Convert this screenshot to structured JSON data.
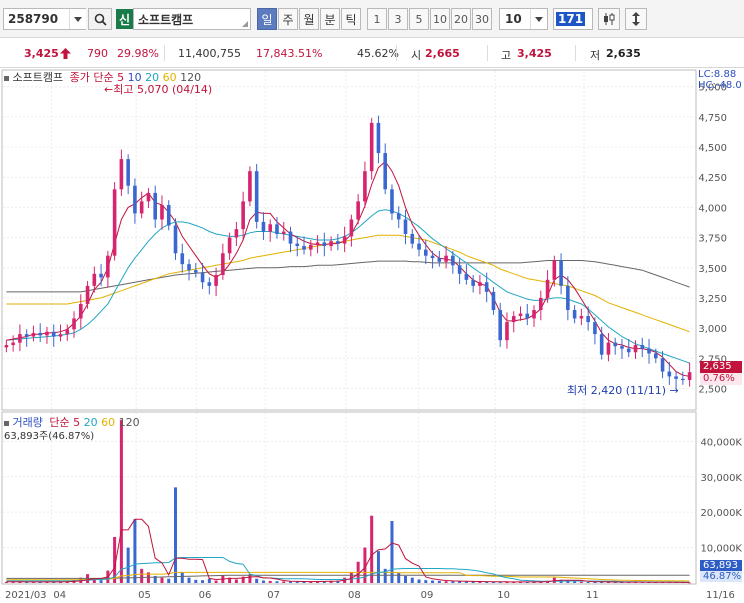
{
  "toolbar": {
    "code": "258790",
    "credit_badge": "신",
    "stock_name": "소프트캠프",
    "periods": [
      "일",
      "주",
      "월",
      "분",
      "틱"
    ],
    "active_period": 0,
    "minute_units": [
      "1",
      "3",
      "5",
      "10",
      "20",
      "30"
    ],
    "count_select": "10",
    "count_input": "171",
    "colors": {
      "active": "#5c7cbf",
      "badge": "#197b4a"
    }
  },
  "quote": {
    "price": "3,425",
    "change_icon": "up-arrow-icon",
    "change": "790",
    "change_pct": "29.98%",
    "volume": "11,400,755",
    "volume_pct": "17,843.51%",
    "ratio": "45.62%",
    "open_label": "시",
    "open": "2,665",
    "high_label": "고",
    "high": "3,425",
    "low_label": "저",
    "low": "2,635"
  },
  "legend_top": {
    "name": "소프트캠프",
    "price_label": "종가 단순",
    "ma": [
      "5",
      "10",
      "20",
      "60",
      "120"
    ]
  },
  "right_labels": {
    "lc": "LC:8.88",
    "hc": "HC:-48.0"
  },
  "annotations": {
    "high": "최고 5,070 (04/14)",
    "low": "최저 2,420 (11/11)"
  },
  "price_tags": {
    "price": "2,635",
    "pct": "0.76%"
  },
  "legend_bottom": {
    "name": "거래량",
    "label": "단순",
    "ma": [
      "5",
      "20",
      "60",
      "120"
    ],
    "current": "63,893주(46.87%)"
  },
  "volume_tags": {
    "vol": "63,893",
    "pct": "46.87%"
  },
  "chart_data": [
    {
      "type": "candlestick",
      "title": "소프트캠프",
      "y_ticks": [
        2500,
        2750,
        3000,
        3250,
        3500,
        3750,
        4000,
        4250,
        4500,
        4750,
        5000
      ],
      "ylim": [
        2330,
        5130
      ],
      "x_ticks": [
        "2021/03",
        "04",
        "05",
        "06",
        "07",
        "08",
        "09",
        "10",
        "11",
        "11/16"
      ],
      "close_series": [
        2860,
        2880,
        2950,
        2930,
        2960,
        2940,
        2970,
        2930,
        2950,
        2990,
        3080,
        3200,
        3350,
        3450,
        3420,
        3600,
        4150,
        4400,
        4180,
        3950,
        4050,
        4120,
        3900,
        4020,
        3850,
        3620,
        3530,
        3480,
        3460,
        3380,
        3350,
        3440,
        3620,
        3750,
        3820,
        4050,
        4300,
        3880,
        3800,
        3860,
        3780,
        3800,
        3700,
        3680,
        3650,
        3690,
        3710,
        3680,
        3720,
        3700,
        3760,
        3900,
        4050,
        4300,
        4700,
        4450,
        4150,
        3950,
        3900,
        3780,
        3700,
        3650,
        3600,
        3580,
        3550,
        3600,
        3520,
        3450,
        3400,
        3350,
        3380,
        3300,
        3150,
        2900,
        3050,
        3100,
        3120,
        3080,
        3150,
        3250,
        3400,
        3560,
        3350,
        3150,
        3080,
        3100,
        3050,
        2950,
        2780,
        2880,
        2850,
        2830,
        2800,
        2860,
        2830,
        2790,
        2750,
        2640,
        2600,
        2580,
        2570,
        2635
      ],
      "ma5": [
        2900,
        2910,
        2920,
        2930,
        2950,
        2950,
        2960,
        2960,
        2970,
        2990,
        3040,
        3100,
        3200,
        3320,
        3380,
        3500,
        3700,
        3900,
        4000,
        4030,
        4080,
        4120,
        4040,
        4020,
        3960,
        3880,
        3760,
        3680,
        3600,
        3520,
        3450,
        3420,
        3460,
        3530,
        3620,
        3730,
        3900,
        3960,
        3950,
        3950,
        3880,
        3830,
        3780,
        3750,
        3720,
        3700,
        3690,
        3690,
        3700,
        3700,
        3720,
        3780,
        3880,
        4010,
        4190,
        4330,
        4380,
        4300,
        4180,
        4000,
        3860,
        3770,
        3690,
        3620,
        3580,
        3570,
        3560,
        3510,
        3450,
        3400,
        3370,
        3350,
        3250,
        3130,
        3060,
        3060,
        3070,
        3080,
        3110,
        3160,
        3270,
        3400,
        3440,
        3400,
        3330,
        3240,
        3150,
        3060,
        2960,
        2900,
        2870,
        2860,
        2840,
        2830,
        2830,
        2820,
        2800,
        2760,
        2700,
        2640,
        2610,
        2600
      ],
      "ma20": [
        2900,
        2905,
        2910,
        2915,
        2920,
        2925,
        2930,
        2935,
        2940,
        2950,
        2960,
        2990,
        3030,
        3080,
        3140,
        3200,
        3300,
        3400,
        3500,
        3580,
        3650,
        3720,
        3780,
        3830,
        3860,
        3880,
        3880,
        3870,
        3850,
        3830,
        3800,
        3780,
        3770,
        3760,
        3760,
        3770,
        3790,
        3800,
        3800,
        3800,
        3790,
        3780,
        3770,
        3760,
        3750,
        3740,
        3730,
        3730,
        3730,
        3740,
        3760,
        3790,
        3830,
        3880,
        3930,
        3970,
        3980,
        3970,
        3950,
        3920,
        3880,
        3840,
        3790,
        3740,
        3700,
        3660,
        3620,
        3580,
        3540,
        3500,
        3460,
        3420,
        3380,
        3340,
        3300,
        3280,
        3260,
        3240,
        3230,
        3230,
        3240,
        3250,
        3250,
        3240,
        3220,
        3200,
        3160,
        3110,
        3060,
        3010,
        2970,
        2930,
        2900,
        2870,
        2850,
        2830,
        2810,
        2790,
        2770,
        2750,
        2730,
        2710
      ],
      "ma60": [
        3200,
        3200,
        3200,
        3200,
        3200,
        3200,
        3200,
        3200,
        3200,
        3200,
        3210,
        3220,
        3230,
        3240,
        3250,
        3270,
        3290,
        3310,
        3330,
        3350,
        3370,
        3390,
        3410,
        3430,
        3450,
        3460,
        3470,
        3480,
        3490,
        3500,
        3510,
        3520,
        3530,
        3540,
        3550,
        3560,
        3580,
        3590,
        3600,
        3610,
        3620,
        3630,
        3640,
        3650,
        3660,
        3670,
        3680,
        3690,
        3700,
        3710,
        3720,
        3730,
        3740,
        3750,
        3760,
        3770,
        3770,
        3770,
        3770,
        3760,
        3750,
        3740,
        3730,
        3710,
        3690,
        3670,
        3650,
        3630,
        3600,
        3580,
        3560,
        3540,
        3520,
        3490,
        3470,
        3450,
        3430,
        3410,
        3400,
        3390,
        3380,
        3370,
        3360,
        3350,
        3330,
        3310,
        3290,
        3270,
        3240,
        3210,
        3190,
        3170,
        3150,
        3130,
        3110,
        3090,
        3070,
        3050,
        3030,
        3010,
        2990,
        2970
      ],
      "ma120": [
        3300,
        3300,
        3300,
        3300,
        3300,
        3300,
        3300,
        3300,
        3300,
        3300,
        3300,
        3300,
        3310,
        3320,
        3330,
        3340,
        3350,
        3360,
        3370,
        3380,
        3390,
        3400,
        3410,
        3420,
        3430,
        3440,
        3445,
        3450,
        3455,
        3460,
        3465,
        3470,
        3475,
        3480,
        3485,
        3490,
        3495,
        3500,
        3500,
        3500,
        3500,
        3505,
        3510,
        3510,
        3510,
        3515,
        3520,
        3520,
        3520,
        3525,
        3530,
        3535,
        3540,
        3545,
        3550,
        3555,
        3555,
        3555,
        3555,
        3555,
        3550,
        3550,
        3545,
        3540,
        3540,
        3540,
        3540,
        3540,
        3540,
        3540,
        3540,
        3540,
        3540,
        3540,
        3540,
        3540,
        3540,
        3545,
        3550,
        3555,
        3560,
        3560,
        3560,
        3560,
        3560,
        3560,
        3555,
        3550,
        3540,
        3530,
        3520,
        3510,
        3500,
        3490,
        3480,
        3460,
        3440,
        3420,
        3400,
        3380,
        3360,
        3340
      ]
    },
    {
      "type": "bar",
      "title": "거래량",
      "y_ticks": [
        10000000,
        20000000,
        30000000,
        40000000
      ],
      "y_tick_labels": [
        "10,000K",
        "20,000K",
        "30,000K",
        "40,000K"
      ],
      "ylim": [
        0,
        48000000
      ],
      "values": [
        300000,
        250000,
        400000,
        300000,
        200000,
        350000,
        250000,
        300000,
        400000,
        500000,
        900000,
        1500000,
        2500000,
        1200000,
        800000,
        3500000,
        13000000,
        46000000,
        10000000,
        18000000,
        4000000,
        3000000,
        2000000,
        1500000,
        1200000,
        27000000,
        3000000,
        1500000,
        900000,
        800000,
        1200000,
        700000,
        2200000,
        1500000,
        1000000,
        1800000,
        2500000,
        1200000,
        700000,
        600000,
        500000,
        450000,
        400000,
        350000,
        400000,
        500000,
        450000,
        400000,
        600000,
        700000,
        1500000,
        3000000,
        6000000,
        10000000,
        19000000,
        9000000,
        4000000,
        17500000,
        3000000,
        2000000,
        1500000,
        1000000,
        800000,
        700000,
        600000,
        500000,
        500000,
        450000,
        400000,
        400000,
        450000,
        350000,
        300000,
        350000,
        300000,
        250000,
        300000,
        280000,
        350000,
        400000,
        600000,
        1500000,
        900000,
        500000,
        400000,
        350000,
        300000,
        300000,
        280000,
        260000,
        250000,
        240000,
        230000,
        260000,
        240000,
        220000,
        210000,
        200000,
        190000,
        180000,
        170000,
        63893
      ],
      "ma5": [
        350000,
        330000,
        330000,
        310000,
        300000,
        300000,
        300000,
        310000,
        320000,
        350000,
        450000,
        600000,
        900000,
        1200000,
        1300000,
        1700000,
        4300000,
        15000000,
        15000000,
        18000000,
        18000000,
        16000000,
        7000000,
        5700000,
        2300000,
        7000000,
        7000000,
        6700000,
        6700000,
        6600000,
        1300000,
        1000000,
        1100000,
        1300000,
        1300000,
        1400000,
        1700000,
        1800000,
        1500000,
        1400000,
        1100000,
        700000,
        500000,
        450000,
        420000,
        400000,
        430000,
        450000,
        500000,
        550000,
        800000,
        1300000,
        2500000,
        4300000,
        7900000,
        9400000,
        9600000,
        11300000,
        10700000,
        6900000,
        5600000,
        4800000,
        1700000,
        1200000,
        900000,
        700000,
        600000,
        550000,
        500000,
        450000,
        430000,
        400000,
        380000,
        360000,
        330000,
        310000,
        300000,
        300000,
        300000,
        320000,
        390000,
        650000,
        750000,
        800000,
        800000,
        730000,
        500000,
        370000,
        330000,
        300000,
        280000,
        260000,
        250000,
        250000,
        240000,
        230000,
        220000,
        210000,
        200000,
        190000,
        180000,
        150000
      ],
      "ma20": [
        600000,
        600000,
        600000,
        600000,
        600000,
        600000,
        600000,
        600000,
        600000,
        600000,
        600000,
        700000,
        800000,
        900000,
        1000000,
        1100000,
        1700000,
        3900000,
        4400000,
        5300000,
        5500000,
        5600000,
        5700000,
        5700000,
        5800000,
        7100000,
        7200000,
        7200000,
        7200000,
        7200000,
        7200000,
        7200000,
        7200000,
        6100000,
        5500000,
        5300000,
        2500000,
        2100000,
        1400000,
        1400000,
        1300000,
        1200000,
        1200000,
        1200000,
        1200000,
        1100000,
        1000000,
        1000000,
        1000000,
        1000000,
        1000000,
        1100000,
        1300000,
        1700000,
        2600000,
        3000000,
        3100000,
        3900000,
        4000000,
        4100000,
        4100000,
        4100000,
        4100000,
        4100000,
        4100000,
        4000000,
        4000000,
        3900000,
        3800000,
        3600000,
        3300000,
        2900000,
        2600000,
        1900000,
        1500000,
        1200000,
        800000,
        700000,
        600000,
        500000,
        500000,
        520000,
        540000,
        560000,
        560000,
        560000,
        560000,
        550000,
        540000,
        520000,
        480000,
        400000,
        360000,
        330000,
        310000,
        300000,
        290000,
        280000,
        270000,
        260000,
        250000,
        230000
      ],
      "ma60": [
        900000,
        900000,
        900000,
        900000,
        900000,
        900000,
        900000,
        900000,
        900000,
        900000,
        900000,
        900000,
        950000,
        1000000,
        1000000,
        1100000,
        1300000,
        2000000,
        2100000,
        2400000,
        2500000,
        2500000,
        2500000,
        2500000,
        2600000,
        3000000,
        3000000,
        3000000,
        3000000,
        3000000,
        3000000,
        3000000,
        3000000,
        3000000,
        3000000,
        3000000,
        3000000,
        3000000,
        3000000,
        3000000,
        3000000,
        3000000,
        3000000,
        3000000,
        3000000,
        3000000,
        3000000,
        3000000,
        3000000,
        3000000,
        3000000,
        3000000,
        3000000,
        3000000,
        3000000,
        3000000,
        3000000,
        3000000,
        2900000,
        2900000,
        2900000,
        2900000,
        2900000,
        2900000,
        2900000,
        2900000,
        2900000,
        2900000,
        2200000,
        2100000,
        2100000,
        2000000,
        1900000,
        1900000,
        1900000,
        1800000,
        1700000,
        1700000,
        1700000,
        1700000,
        1700000,
        1700000,
        1600000,
        1500000,
        1400000,
        1300000,
        1200000,
        1100000,
        1000000,
        900000,
        850000,
        800000,
        750000,
        720000,
        700000,
        680000,
        660000,
        640000,
        620000,
        600000,
        580000,
        560000
      ],
      "ma120": [
        1300000,
        1300000,
        1300000,
        1300000,
        1300000,
        1300000,
        1300000,
        1300000,
        1300000,
        1300000,
        1300000,
        1300000,
        1300000,
        1300000,
        1300000,
        1300000,
        1350000,
        1400000,
        1450000,
        1500000,
        1550000,
        1600000,
        1650000,
        1700000,
        1750000,
        1800000,
        1850000,
        1900000,
        1950000,
        2000000,
        2050000,
        2100000,
        2150000,
        2200000,
        2200000,
        2200000,
        2200000,
        2200000,
        2200000,
        2200000,
        2200000,
        2200000,
        2200000,
        2200000,
        2200000,
        2200000,
        2200000,
        2200000,
        2200000,
        2200000,
        2200000,
        2200000,
        2200000,
        2200000,
        2200000,
        2200000,
        2200000,
        2200000,
        2200000,
        2200000,
        2200000,
        2200000,
        2200000,
        2200000,
        2200000,
        2200000,
        2200000,
        2200000,
        2200000,
        2200000,
        2200000,
        2200000,
        2200000,
        2200000,
        2200000,
        2200000,
        2200000,
        2200000,
        2200000,
        2200000,
        2200000,
        2200000,
        2200000,
        2200000,
        2200000,
        2200000,
        2200000,
        2200000,
        2200000,
        2200000,
        2200000,
        2200000,
        2200000,
        2200000,
        2200000,
        2200000,
        2200000,
        2200000,
        2200000,
        2200000,
        2200000,
        2200000
      ]
    }
  ]
}
